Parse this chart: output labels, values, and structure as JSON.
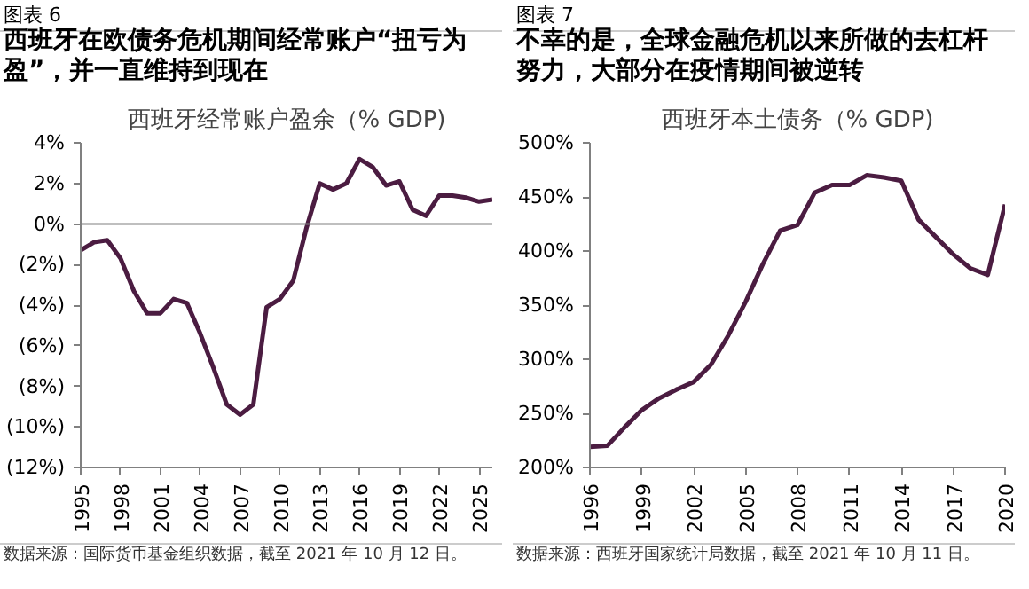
{
  "chart_data": [
    {
      "type": "line",
      "title": "西班牙在欧债务危机期间经常账户“扭亏为盈”，并一直维持到现在",
      "subtitle": "西班牙经常账户盈余（% GDP)",
      "annotations": [
        "图表 6",
        "数据来源：国际货币基金组织数据，截至 2021 年 10 月 12 日。"
      ],
      "x": [
        1995,
        1996,
        1997,
        1998,
        1999,
        2000,
        2001,
        2002,
        2003,
        2004,
        2005,
        2006,
        2007,
        2008,
        2009,
        2010,
        2011,
        2012,
        2013,
        2014,
        2015,
        2016,
        2017,
        2018,
        2019,
        2020,
        2021,
        2022,
        2023,
        2024,
        2025,
        2026
      ],
      "series": [
        {
          "color": "#4b1c41",
          "values": [
            -1.3,
            -0.9,
            -0.8,
            -1.7,
            -3.3,
            -4.4,
            -4.4,
            -3.7,
            -3.9,
            -5.4,
            -7.1,
            -8.9,
            -9.4,
            -8.9,
            -4.1,
            -3.7,
            -2.8,
            -0.2,
            2.0,
            1.7,
            2.0,
            3.2,
            2.8,
            1.9,
            2.1,
            0.7,
            0.4,
            1.4,
            1.4,
            1.3,
            1.1,
            1.2
          ]
        }
      ],
      "xlim": [
        1995,
        2026
      ],
      "xticks": [
        1995,
        1998,
        2001,
        2004,
        2007,
        2010,
        2013,
        2016,
        2019,
        2022,
        2025
      ],
      "ylim": [
        -12,
        4
      ],
      "yticks": [
        {
          "value": -12,
          "label": "(12%)"
        },
        {
          "value": -10,
          "label": "(10%)"
        },
        {
          "value": -8,
          "label": "(8%)"
        },
        {
          "value": -6,
          "label": "(6%)"
        },
        {
          "value": -4,
          "label": "(4%)"
        },
        {
          "value": -2,
          "label": "(2%)"
        },
        {
          "value": 0,
          "label": "0%"
        },
        {
          "value": 2,
          "label": "2%"
        },
        {
          "value": 4,
          "label": "4%"
        }
      ],
      "ref_lines": [
        {
          "axis": "y",
          "value": 0
        }
      ],
      "grid": false,
      "marker": "none",
      "line_style": "solid"
    },
    {
      "type": "line",
      "title": "不幸的是，全球金融危机以来所做的去杠杆努力，大部分在疫情期间被逆转",
      "subtitle": "西班牙本土债务（% GDP)",
      "annotations": [
        "图表 7",
        "数据来源：西班牙国家统计局数据，截至 2021 年 10 月 11 日。"
      ],
      "x": [
        1996,
        1997,
        1998,
        1999,
        2000,
        2001,
        2002,
        2003,
        2004,
        2005,
        2006,
        2007,
        2008,
        2009,
        2010,
        2011,
        2012,
        2013,
        2014,
        2015,
        2016,
        2017,
        2018,
        2019,
        2020
      ],
      "series": [
        {
          "color": "#4b1c41",
          "values": [
            219,
            220,
            237,
            253,
            264,
            272,
            279,
            295,
            322,
            353,
            388,
            419,
            424,
            454,
            461,
            461,
            470,
            468,
            465,
            429,
            413,
            397,
            384,
            378,
            443
          ]
        }
      ],
      "xlim": [
        1996,
        2020
      ],
      "xticks": [
        1996,
        1999,
        2002,
        2005,
        2008,
        2011,
        2014,
        2017,
        2020
      ],
      "ylim": [
        200,
        500
      ],
      "yticks": [
        {
          "value": 200,
          "label": "200%"
        },
        {
          "value": 250,
          "label": "250%"
        },
        {
          "value": 300,
          "label": "300%"
        },
        {
          "value": 350,
          "label": "350%"
        },
        {
          "value": 400,
          "label": "400%"
        },
        {
          "value": 450,
          "label": "450%"
        },
        {
          "value": 500,
          "label": "500%"
        }
      ],
      "grid": false,
      "marker": "none",
      "line_style": "solid"
    }
  ]
}
